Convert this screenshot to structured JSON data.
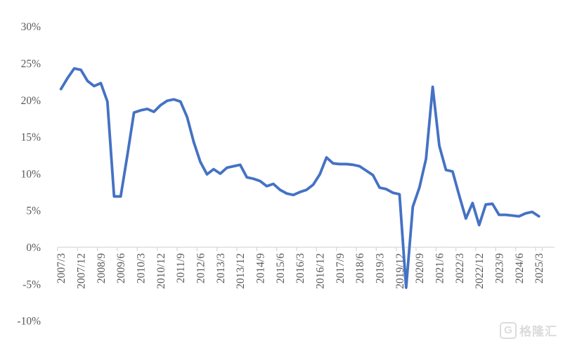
{
  "chart_data": {
    "type": "line",
    "title": "",
    "unit": "%",
    "series_name": "quarterly-growth-rate",
    "line_color": "#4472C4",
    "axis_color": "#d9d9d9",
    "label_color": "#595959",
    "grid": false,
    "legend": "none",
    "ylim": [
      -10,
      30
    ],
    "x_label_interval": 3,
    "y_tick_labels": [
      "30%",
      "25%",
      "20%",
      "15%",
      "10%",
      "5%",
      "0%",
      "-5%",
      "-10%"
    ],
    "y_tick_values": [
      30,
      25,
      20,
      15,
      10,
      5,
      0,
      -5,
      -10
    ],
    "x_tick_labels": [
      "2007/3",
      "2007/12",
      "2008/9",
      "2009/6",
      "2010/3",
      "2010/12",
      "2011/9",
      "2012/6",
      "2013/3",
      "2013/12",
      "2014/9",
      "2015/6",
      "2016/3",
      "2016/12",
      "2017/9",
      "2018/6",
      "2019/3",
      "2019/12",
      "2020/9",
      "2021/6",
      "2022/3",
      "2022/12",
      "2023/9",
      "2024/6",
      "2025/3"
    ],
    "x": [
      "2007/3",
      "2007/6",
      "2007/9",
      "2007/12",
      "2008/3",
      "2008/6",
      "2008/9",
      "2008/12",
      "2009/3",
      "2009/6",
      "2009/9",
      "2009/12",
      "2010/3",
      "2010/6",
      "2010/9",
      "2010/12",
      "2011/3",
      "2011/6",
      "2011/9",
      "2011/12",
      "2012/3",
      "2012/6",
      "2012/9",
      "2012/12",
      "2013/3",
      "2013/6",
      "2013/9",
      "2013/12",
      "2014/3",
      "2014/6",
      "2014/9",
      "2014/12",
      "2015/3",
      "2015/6",
      "2015/9",
      "2015/12",
      "2016/3",
      "2016/6",
      "2016/9",
      "2016/12",
      "2017/3",
      "2017/6",
      "2017/9",
      "2017/12",
      "2018/3",
      "2018/6",
      "2018/9",
      "2018/12",
      "2019/3",
      "2019/6",
      "2019/9",
      "2019/12",
      "2020/3",
      "2020/6",
      "2020/9",
      "2020/12",
      "2021/3",
      "2021/6",
      "2021/9",
      "2021/12",
      "2022/3",
      "2022/6",
      "2022/9",
      "2022/12",
      "2023/3",
      "2023/6",
      "2023/9",
      "2023/12",
      "2024/3",
      "2024/6",
      "2024/9",
      "2024/12",
      "2025/3"
    ],
    "values": [
      21.5,
      23.0,
      24.3,
      24.1,
      22.6,
      21.9,
      22.3,
      19.8,
      6.9,
      6.9,
      12.5,
      18.3,
      18.6,
      18.8,
      18.4,
      19.3,
      19.9,
      20.1,
      19.8,
      17.7,
      14.3,
      11.6,
      9.9,
      10.6,
      10.0,
      10.8,
      11.0,
      11.2,
      9.5,
      9.3,
      9.0,
      8.3,
      8.6,
      7.8,
      7.3,
      7.1,
      7.5,
      7.8,
      8.5,
      9.9,
      12.2,
      11.4,
      11.3,
      11.3,
      11.2,
      11.0,
      10.4,
      9.8,
      8.1,
      7.9,
      7.4,
      7.2,
      -5.5,
      5.5,
      8.1,
      12.0,
      21.8,
      13.8,
      10.5,
      10.3,
      7.0,
      3.9,
      6.0,
      3.0,
      5.8,
      5.9,
      4.4,
      4.4,
      4.3,
      4.2,
      4.6,
      4.8,
      4.2
    ]
  },
  "watermark": {
    "logo_letter": "G",
    "text": "格隆汇"
  }
}
